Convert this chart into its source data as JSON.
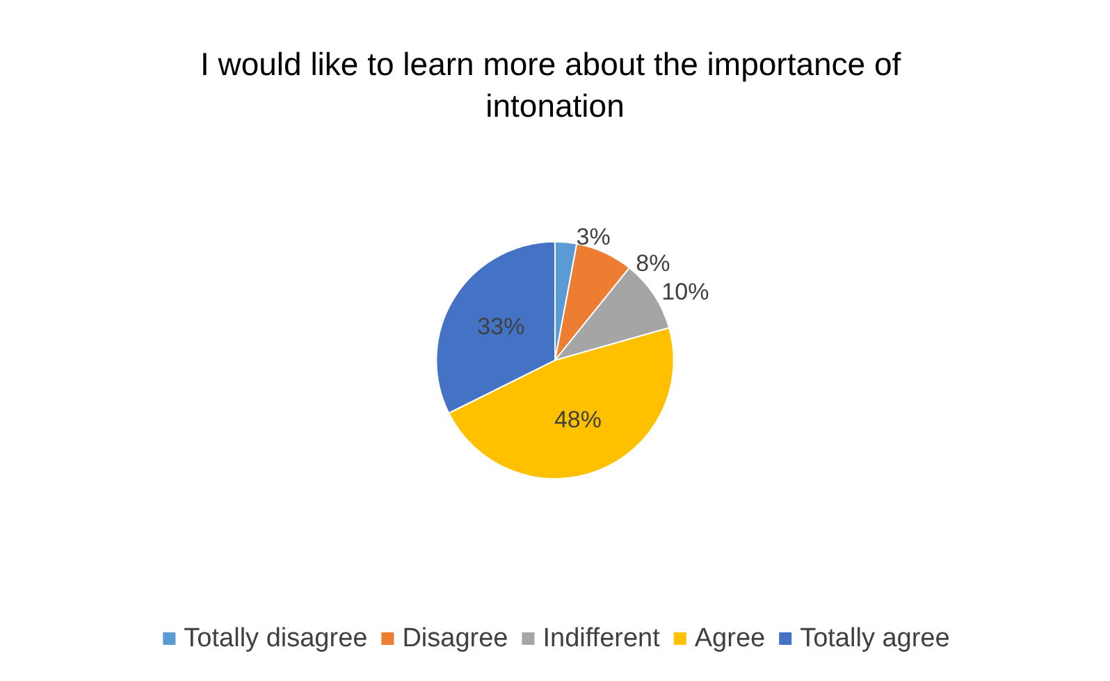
{
  "chart_data": {
    "type": "pie",
    "title": "I would like to learn more about the importance of intonation",
    "categories": [
      "Totally disagree",
      "Disagree",
      "Indifferent",
      "Agree",
      "Totally agree"
    ],
    "values": [
      3,
      8,
      10,
      48,
      33
    ],
    "colors": [
      "#5b9bd5",
      "#ed7d31",
      "#a5a5a5",
      "#ffc000",
      "#4472c4"
    ],
    "value_labels": [
      "3%",
      "8%",
      "10%",
      "48%",
      "33%"
    ],
    "legend": "bottom"
  }
}
